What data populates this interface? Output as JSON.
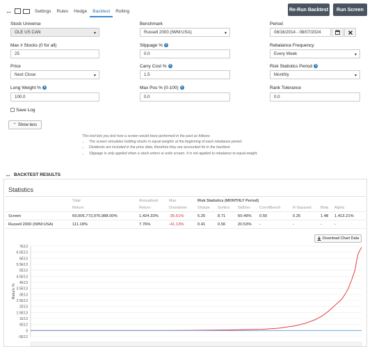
{
  "tabs": [
    {
      "label": "Settings",
      "active": false
    },
    {
      "label": "Rules",
      "active": false
    },
    {
      "label": "Hedge",
      "active": false
    },
    {
      "label": "Backtest",
      "active": true
    },
    {
      "label": "Rolling",
      "active": false
    }
  ],
  "buttons": {
    "rerun": "Re-Run Backtest",
    "run": "Run Screen",
    "show_less": "Show less",
    "download": "Download Chart Data"
  },
  "form": {
    "stock_universe": {
      "label": "Stock Universe",
      "value": "OLE US CAN"
    },
    "benchmark": {
      "label": "Benchmark",
      "value": "Russell 2000 (IWM:USA)"
    },
    "period": {
      "label": "Period",
      "value": "08/16/2014 - 08/07/2024"
    },
    "max_stocks": {
      "label": "Max # Stocks (0 for all)",
      "value": "25"
    },
    "slippage": {
      "label": "Slippage %",
      "value": "0.0"
    },
    "rebalance_freq": {
      "label": "Rebalance Frequency",
      "value": "Every Week"
    },
    "price": {
      "label": "Price",
      "value": "Next Close"
    },
    "carry_cost": {
      "label": "Carry Cost %",
      "value": "1.5"
    },
    "risk_period": {
      "label": "Risk Statistics Period",
      "value": "Monthly"
    },
    "long_weight": {
      "label": "Long Weight %",
      "value": "100.0"
    },
    "max_pos": {
      "label": "Max Pos % (0-100)",
      "value": "0.0"
    },
    "rank_tolerance": {
      "label": "Rank Tolerance",
      "value": "0.0"
    },
    "save_log": {
      "label": "Save Log",
      "checked": false
    }
  },
  "info": {
    "intro": "This tool lets you test how a screen would have performed in the past as follows:",
    "bullets": [
      "The screen simulates holding stocks in equal weights at the beginning of each rebalance period.",
      "Dividends are included in the price data, therefore they are accounted for in the backtest.",
      "Slippage is only applied when a stock enters or exits screen. It is not applied to rebalance to equal weight."
    ]
  },
  "results": {
    "section_title": "BACKTEST RESULTS",
    "stats_title": "Statistics",
    "headers": {
      "total_1": "Total",
      "total_2": "Return",
      "ann_1": "Annualized",
      "ann_2": "Return",
      "max_1": "Max",
      "max_2": "Drawdown",
      "risk_group": "Risk Statistics (MONTHLY Period)",
      "sharpe": "Sharpe",
      "sortino": "Sortino",
      "stddev": "StdDev",
      "correl": "CorrelBench",
      "rsq": "R-Squared",
      "beta": "Beta",
      "alpha": "Alpha"
    },
    "rows": [
      {
        "name": "Screen",
        "total": "69,006,773,976,988.00%",
        "annualized": "1,424.33%",
        "drawdown": "-35.61%",
        "sharpe": "5.25",
        "sortino": "8.71",
        "stddev": "60.49%",
        "correl": "0.50",
        "rsq": "0.25",
        "beta": "1.48",
        "alpha": "1,413.21%"
      },
      {
        "name": "Russell 2000 (IWM:USA)",
        "total": "111.18%",
        "annualized": "7.76%",
        "drawdown": "-41.13%",
        "sharpe": "0.41",
        "sortino": "0.56",
        "stddev": "20.53%",
        "correl": "-",
        "rsq": "-",
        "beta": "-",
        "alpha": "-"
      }
    ]
  },
  "chart_data": {
    "type": "line",
    "title": "",
    "xlabel": "",
    "ylabel": "Return %",
    "y_tick_labels": [
      "7E13",
      "6.5E13",
      "6E13",
      "5.5E13",
      "5E13",
      "4.5E13",
      "4E13",
      "3.5E13",
      "3E13",
      "2.5E13",
      "2E13",
      "1.5E13",
      "1E13",
      "5E12",
      "0",
      "-5E12"
    ],
    "ylim": [
      -5000000000000.0,
      70000000000000.0
    ],
    "x": [
      0.0,
      0.1,
      0.2,
      0.3,
      0.4,
      0.5,
      0.6,
      0.7,
      0.75,
      0.8,
      0.83,
      0.86,
      0.88,
      0.9,
      0.92,
      0.94,
      0.95,
      0.96,
      0.97,
      0.98,
      0.985,
      0.99,
      1.0
    ],
    "series": [
      {
        "name": "Screen",
        "color": "#e8272a",
        "values": [
          0,
          0,
          0,
          0,
          0,
          200000000000.0,
          500000000000.0,
          1000000000000.0,
          2000000000000.0,
          4000000000000.0,
          6000000000000.0,
          9000000000000.0,
          12000000000000.0,
          16000000000000.0,
          21000000000000.0,
          26000000000000.0,
          30000000000000.0,
          35000000000000.0,
          42000000000000.0,
          50000000000000.0,
          58000000000000.0,
          64000000000000.0,
          69000000000000.0
        ]
      },
      {
        "name": "Russell 2000 (IWM:USA)",
        "color": "#5b9bd5",
        "values": [
          0,
          0,
          0,
          0,
          0,
          0,
          0,
          0,
          0,
          0,
          0,
          0,
          0,
          0,
          0,
          0,
          0,
          0,
          0,
          0,
          0,
          0,
          0
        ]
      }
    ]
  }
}
